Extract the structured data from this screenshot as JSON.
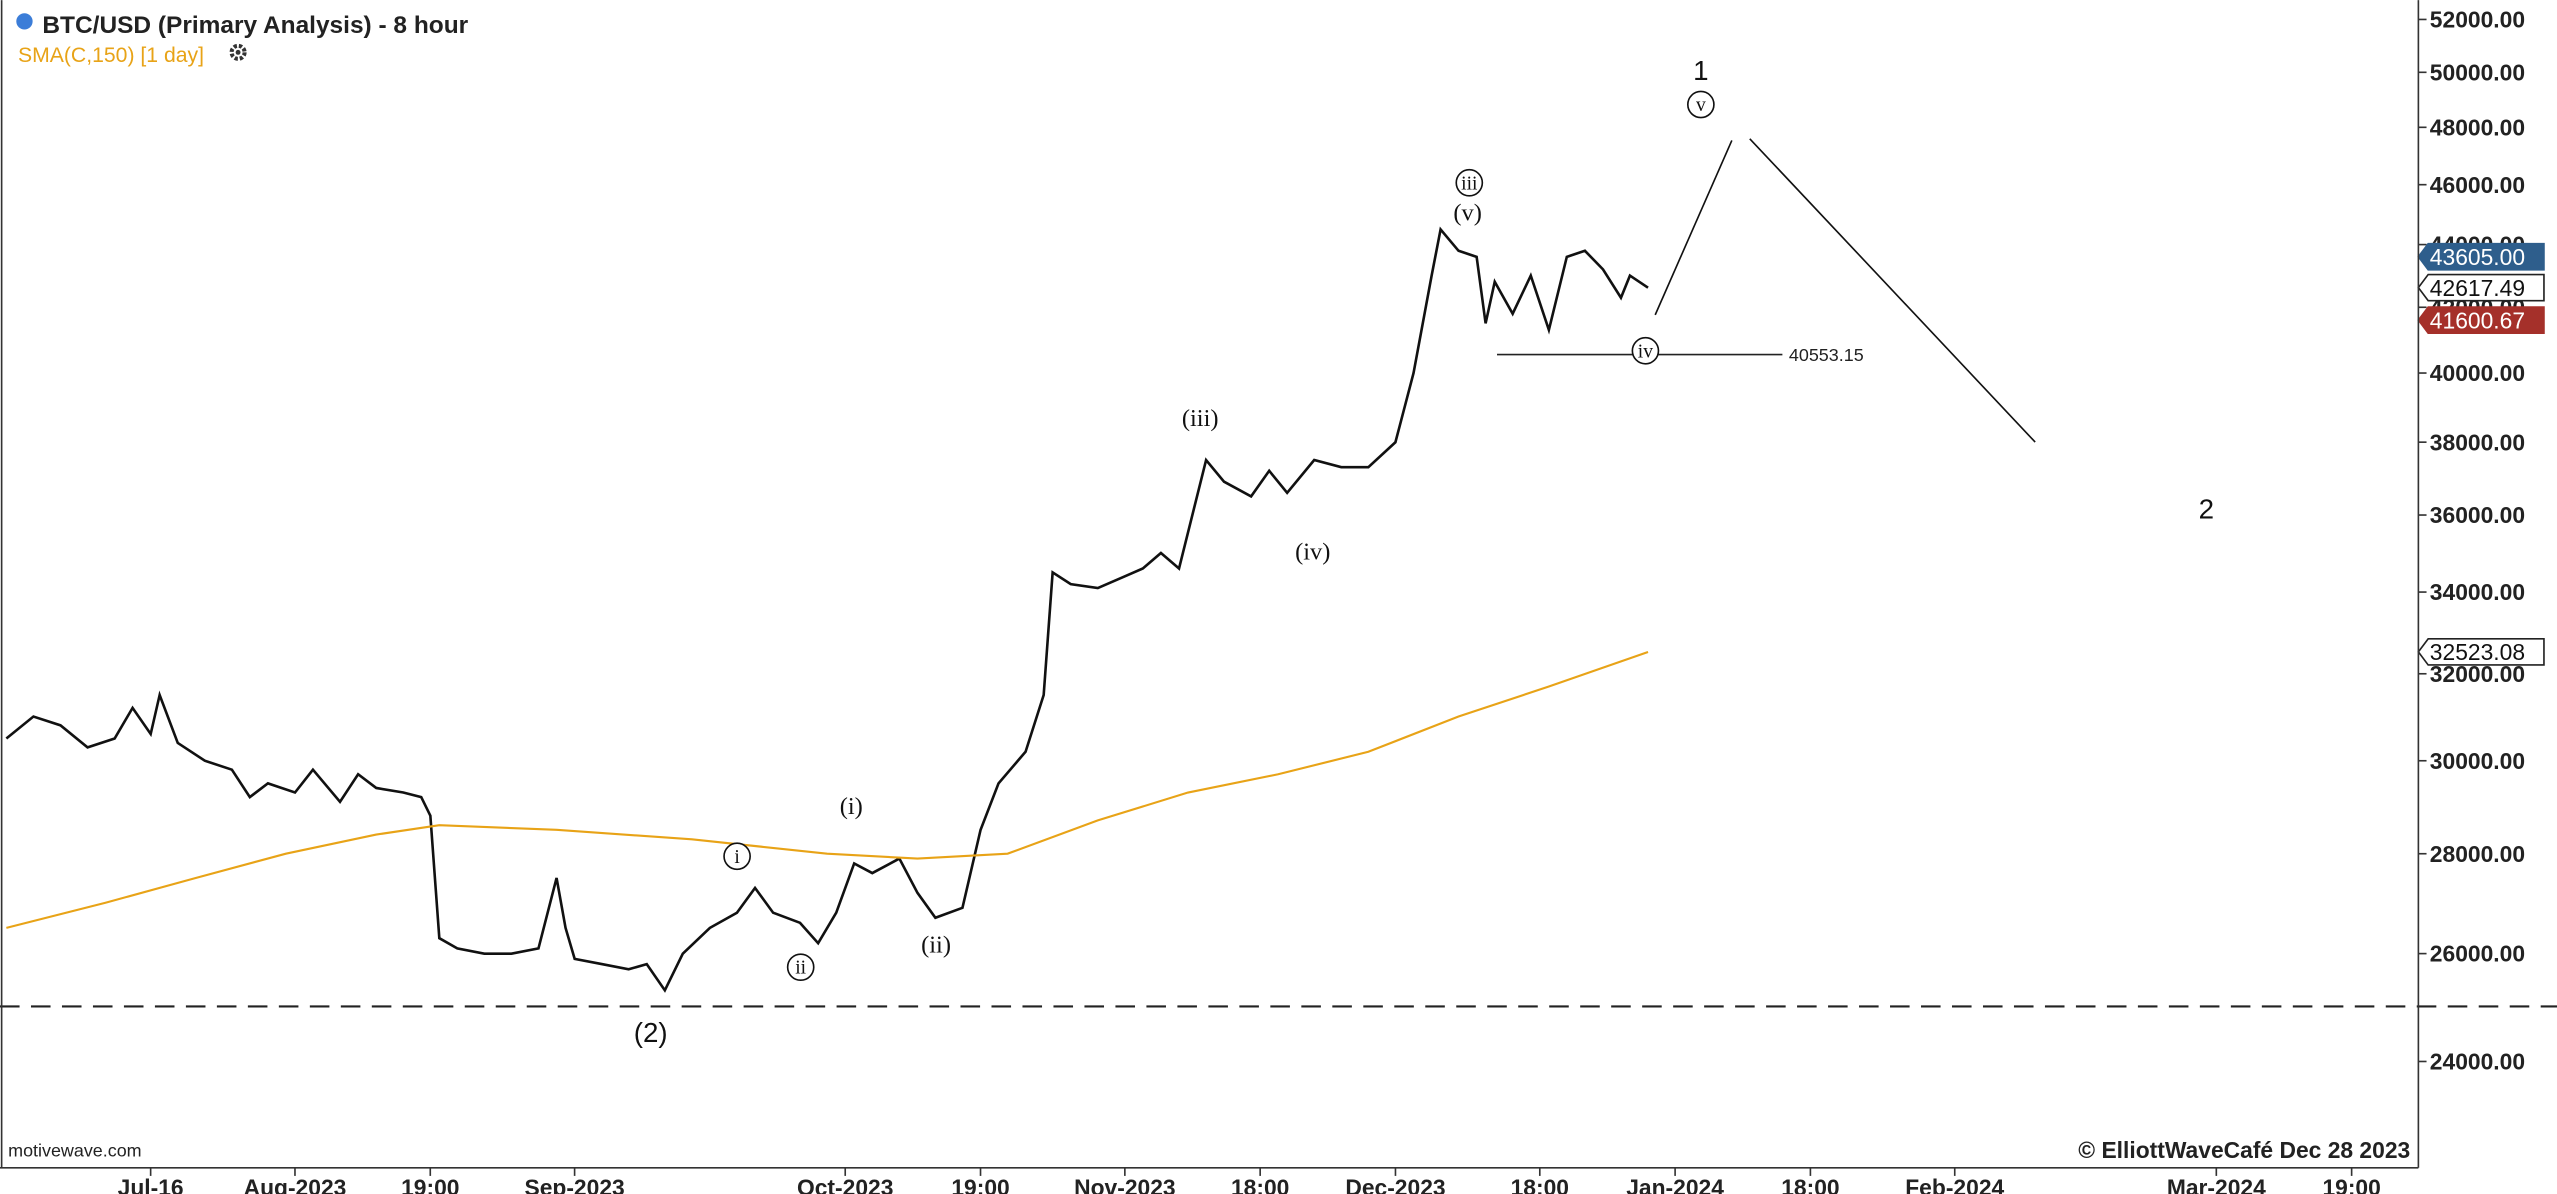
{
  "chart_data": {
    "type": "line",
    "title": "BTC/USD (Primary Analysis) - 8 hour",
    "subtitle": "SMA(C,150) [1 day]",
    "log_scale": true,
    "xlim": [
      -1.7,
      266.4
    ],
    "xticks": [
      {
        "value": 15,
        "label": "Jul-16"
      },
      {
        "value": 31,
        "label": "Aug-2023"
      },
      {
        "value": 46,
        "label": "19:00"
      },
      {
        "value": 62,
        "label": "Sep-2023"
      },
      {
        "value": 92,
        "label": "Oct-2023"
      },
      {
        "value": 107,
        "label": "19:00"
      },
      {
        "value": 123,
        "label": "Nov-2023"
      },
      {
        "value": 138,
        "label": "18:00"
      },
      {
        "value": 153,
        "label": "Dec-2023"
      },
      {
        "value": 169,
        "label": "18:00"
      },
      {
        "value": 184,
        "label": "Jan-2024"
      },
      {
        "value": 199,
        "label": "18:00"
      },
      {
        "value": 215,
        "label": "Feb-2024"
      },
      {
        "value": 244,
        "label": "Mar-2024"
      },
      {
        "value": 259,
        "label": "19:00"
      }
    ],
    "ylim": [
      22180,
      52750
    ],
    "yticks": [
      {
        "value": 24000,
        "label": "24000.00"
      },
      {
        "value": 26000,
        "label": "26000.00"
      },
      {
        "value": 28000,
        "label": "28000.00"
      },
      {
        "value": 30000,
        "label": "30000.00"
      },
      {
        "value": 32000,
        "label": "32000.00"
      },
      {
        "value": 34000,
        "label": "34000.00"
      },
      {
        "value": 36000,
        "label": "36000.00"
      },
      {
        "value": 38000,
        "label": "38000.00"
      },
      {
        "value": 40000,
        "label": "40000.00"
      },
      {
        "value": 42000,
        "label": "42000.00"
      },
      {
        "value": 44000,
        "label": "44000.00"
      },
      {
        "value": 46000,
        "label": "46000.00"
      },
      {
        "value": 48000,
        "label": "48000.00"
      },
      {
        "value": 50000,
        "label": "50000.00"
      },
      {
        "value": 52000,
        "label": "52000.00"
      }
    ],
    "series": [
      {
        "name": "BTC/USD",
        "color": "#111111",
        "x": [
          -1,
          2,
          5,
          8,
          11,
          13,
          15,
          16,
          18,
          21,
          24,
          26,
          28,
          31,
          33,
          36,
          38,
          40,
          43,
          45,
          46,
          47,
          49,
          52,
          55,
          58,
          60,
          61,
          62,
          65,
          68,
          70,
          72,
          74,
          77,
          80,
          82,
          84,
          87,
          89,
          91,
          93,
          95,
          98,
          100,
          102,
          105,
          107,
          109,
          112,
          114,
          115,
          117,
          120,
          123,
          125,
          127,
          129,
          132,
          134,
          137,
          139,
          141,
          144,
          147,
          150,
          153,
          155,
          157,
          158,
          160,
          162,
          163,
          164,
          166,
          168,
          170,
          172,
          174,
          176,
          178,
          179,
          181
        ],
        "values": [
          30500,
          31000,
          30800,
          30300,
          30500,
          31200,
          30600,
          31500,
          30400,
          30000,
          29800,
          29200,
          29500,
          29300,
          29800,
          29100,
          29700,
          29400,
          29300,
          29200,
          28800,
          26300,
          26100,
          26000,
          26000,
          26100,
          27500,
          26500,
          25900,
          25800,
          25700,
          25800,
          25300,
          26000,
          26500,
          26800,
          27300,
          26800,
          26600,
          26200,
          26800,
          27800,
          27600,
          27900,
          27200,
          26700,
          26900,
          28500,
          29500,
          30200,
          31500,
          34500,
          34200,
          34100,
          34400,
          34600,
          35000,
          34600,
          37500,
          36900,
          36500,
          37200,
          36600,
          37500,
          37300,
          37300,
          38000,
          40000,
          43000,
          44500,
          43800,
          43600,
          41500,
          42800,
          41800,
          43000,
          41300,
          43600,
          43800,
          43200,
          42300,
          43000,
          42617.49
        ]
      },
      {
        "name": "SMA(C,150)",
        "color": "#e8a317",
        "x": [
          -1,
          10,
          20,
          30,
          40,
          47,
          60,
          75,
          90,
          100,
          110,
          120,
          130,
          140,
          150,
          160,
          170,
          181
        ],
        "values": [
          26500,
          27000,
          27500,
          28000,
          28400,
          28600,
          28500,
          28300,
          28000,
          27900,
          28000,
          28700,
          29300,
          29700,
          30200,
          31000,
          31700,
          32523.08
        ]
      }
    ],
    "level": 40553.15,
    "dashed_level": 25000,
    "price_markers": [
      {
        "value": 43605,
        "label": "43605.00",
        "color": "#2e5e8c"
      },
      {
        "value": 42617.49,
        "label": "42617.49",
        "color": "#ffffff"
      },
      {
        "value": 41600.67,
        "label": "41600.67",
        "color": "#a5302a"
      },
      {
        "value": 32523.08,
        "label": "32523.08",
        "color": "#ffffff"
      }
    ],
    "wave_labels": [
      "(2)",
      "i",
      "ii",
      "(i)",
      "(ii)",
      "(iii)",
      "(iv)",
      "(v)",
      "iii",
      "iv",
      "v",
      "1",
      "2"
    ],
    "source": "motivewave.com",
    "copyright": "© ElliottWaveCafé Dec 28 2023"
  }
}
